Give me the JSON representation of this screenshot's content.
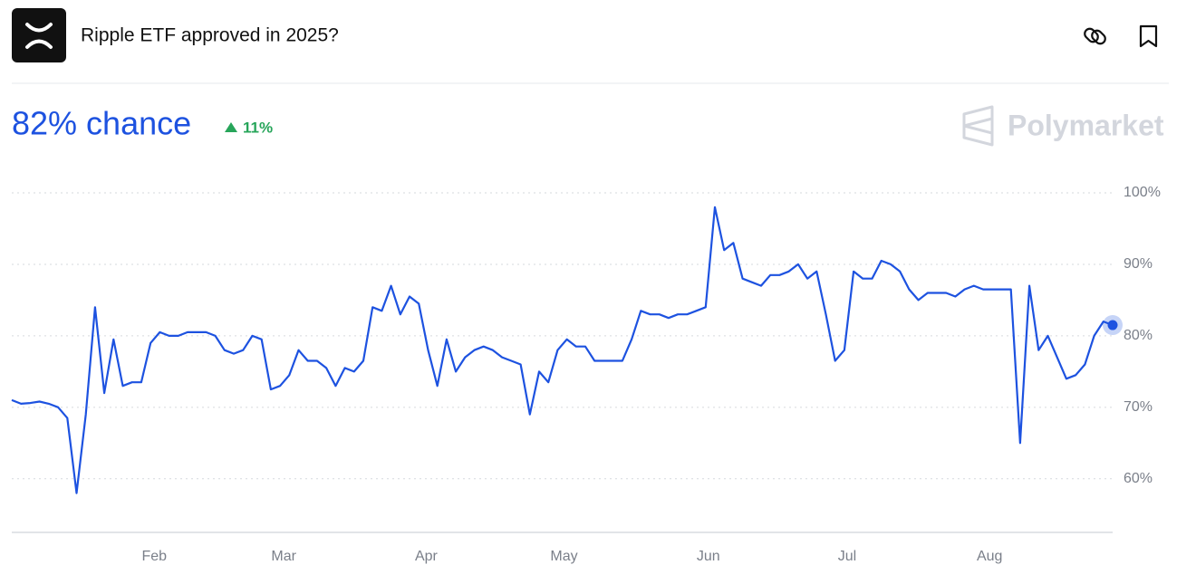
{
  "header": {
    "title": "Ripple ETF approved in 2025?",
    "chance": "82% chance",
    "change": "11%",
    "brand": "Polymarket"
  },
  "chart_data": {
    "type": "line",
    "color": "#1d52e0",
    "grid": true,
    "values": [
      71,
      70.5,
      70.6,
      70.8,
      70.5,
      70,
      68.5,
      58,
      69,
      84,
      72,
      79.5,
      73,
      73.5,
      73.5,
      79,
      80.5,
      80,
      80,
      80.5,
      80.5,
      80.5,
      80,
      78,
      77.5,
      78,
      80,
      79.5,
      72.5,
      73,
      74.5,
      78,
      76.5,
      76.5,
      75.5,
      73,
      75.5,
      75,
      76.5,
      84,
      83.5,
      87,
      83,
      85.5,
      84.5,
      78,
      73,
      79.5,
      75,
      77,
      78,
      78.5,
      78,
      77,
      76.5,
      76,
      69,
      75,
      73.5,
      78,
      79.5,
      78.5,
      78.5,
      76.5,
      76.5,
      76.5,
      76.5,
      79.5,
      83.5,
      83,
      83,
      82.5,
      83,
      83,
      83.5,
      84,
      98,
      92,
      93,
      88,
      87.5,
      87,
      88.5,
      88.5,
      89,
      90,
      88,
      89,
      83,
      76.5,
      78,
      89,
      88,
      88,
      90.5,
      90,
      89,
      86.5,
      85,
      86,
      86,
      86,
      85.5,
      86.5,
      87,
      86.5,
      86.5,
      86.5,
      86.5,
      65,
      87,
      78,
      80,
      77,
      74,
      74.5,
      76,
      80,
      82,
      81.5
    ],
    "xlim": [
      0,
      119
    ],
    "xticks": [
      {
        "value": 15.4,
        "label": "Feb"
      },
      {
        "value": 29.4,
        "label": "Mar"
      },
      {
        "value": 44.8,
        "label": "Apr"
      },
      {
        "value": 59.7,
        "label": "May"
      },
      {
        "value": 75.3,
        "label": "Jun"
      },
      {
        "value": 90.3,
        "label": "Jul"
      },
      {
        "value": 105.7,
        "label": "Aug"
      }
    ],
    "ylim": [
      52.5,
      100
    ],
    "yticks": [
      {
        "value": 60,
        "label": "60%"
      },
      {
        "value": 70,
        "label": "70%"
      },
      {
        "value": 80,
        "label": "80%"
      },
      {
        "value": 90,
        "label": "90%"
      },
      {
        "value": 100,
        "label": "100%"
      }
    ]
  }
}
